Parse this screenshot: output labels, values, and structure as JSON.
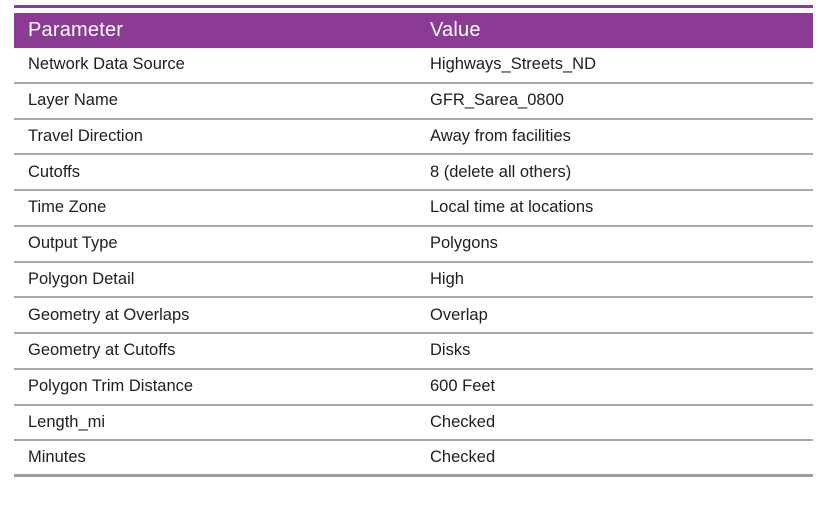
{
  "table": {
    "columns": [
      "Parameter",
      "Value"
    ],
    "rows": [
      {
        "parameter": "Network Data Source",
        "value": "Highways_Streets_ND"
      },
      {
        "parameter": "Layer Name",
        "value": "GFR_Sarea_0800"
      },
      {
        "parameter": "Travel Direction",
        "value": "Away from facilities"
      },
      {
        "parameter": "Cutoffs",
        "value": "8 (delete all others)"
      },
      {
        "parameter": "Time Zone",
        "value": "Local time at locations"
      },
      {
        "parameter": "Output Type",
        "value": "Polygons"
      },
      {
        "parameter": "Polygon Detail",
        "value": "High"
      },
      {
        "parameter": "Geometry at Overlaps",
        "value": "Overlap"
      },
      {
        "parameter": "Geometry at Cutoffs",
        "value": "Disks"
      },
      {
        "parameter": "Polygon Trim Distance",
        "value": "600 Feet"
      },
      {
        "parameter": "Length_mi",
        "value": "Checked"
      },
      {
        "parameter": "Minutes",
        "value": "Checked"
      }
    ]
  },
  "colors": {
    "header_bg": "#8c3b94",
    "top_accent_rule": "#7d4199",
    "row_divider": "#a6a8ab",
    "header_text": "#ffffff",
    "body_text": "#1f1d1e",
    "page_bg": "#ffffff"
  }
}
